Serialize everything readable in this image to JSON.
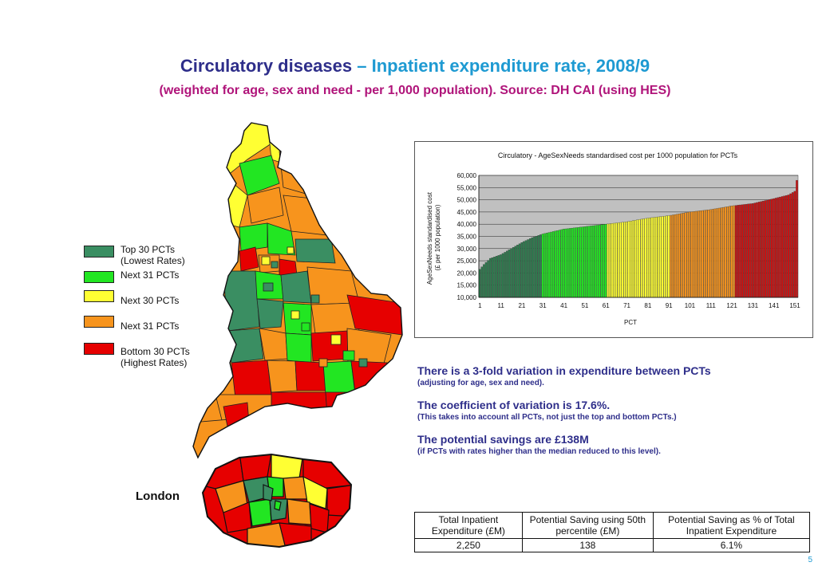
{
  "title": {
    "main": "Circulatory diseases",
    "sub": "– Inpatient expenditure rate, 2008/9",
    "subtitle": "(weighted for age, sex and need - per 1,000 population). Source: DH CAI (using HES)"
  },
  "legend": [
    {
      "label": "Top 30 PCTs\n(Lowest Rates)",
      "color": "#3a8e62"
    },
    {
      "label": "Next 31 PCTs",
      "color": "#22e622"
    },
    {
      "label": "Next 30 PCTs",
      "color": "#ffff33"
    },
    {
      "label": "Next 31 PCTs",
      "color": "#f7941d"
    },
    {
      "label": "Bottom 30 PCTs\n(Highest Rates)",
      "color": "#e60000"
    }
  ],
  "london_label": "London",
  "notes": [
    {
      "heading": "There is a 3-fold variation in expenditure between PCTs",
      "detail": "(adjusting for age, sex and need)."
    },
    {
      "heading": "The coefficient of variation is 17.6%.",
      "detail": "(This takes into account all PCTs, not just the top and bottom PCTs.)"
    },
    {
      "heading": "The potential savings are £138M",
      "detail": "(if PCTs with rates higher than the median reduced to this level)."
    }
  ],
  "table": {
    "headers": [
      "Total Inpatient Expenditure (£M)",
      "Potential Saving using 50th percentile (£M)",
      "Potential Saving as % of Total Inpatient Expenditure"
    ],
    "row": [
      "2,250",
      "138",
      "6.1%"
    ]
  },
  "page_number": "5",
  "chart_data": {
    "type": "bar",
    "title": "Circulatory - AgeSexNeeds standardised cost per 1000 population for PCTs",
    "xlabel": "PCT",
    "ylabel": "AgeSexNeeds standardised cost (£ per 1000 population)",
    "ylim": [
      10000,
      60000
    ],
    "yticks": [
      "10,000",
      "15,000",
      "20,000",
      "25,000",
      "30,000",
      "35,000",
      "40,000",
      "45,000",
      "50,000",
      "55,000",
      "60,000"
    ],
    "xticks": [
      "1",
      "11",
      "21",
      "31",
      "41",
      "51",
      "61",
      "71",
      "81",
      "91",
      "101",
      "111",
      "121",
      "131",
      "141",
      "151"
    ],
    "n": 152,
    "value_points": [
      [
        1,
        21500
      ],
      [
        3,
        23500
      ],
      [
        6,
        26000
      ],
      [
        11,
        27500
      ],
      [
        16,
        30000
      ],
      [
        21,
        32500
      ],
      [
        26,
        34500
      ],
      [
        31,
        36000
      ],
      [
        41,
        38000
      ],
      [
        51,
        39000
      ],
      [
        61,
        40000
      ],
      [
        71,
        41000
      ],
      [
        81,
        42500
      ],
      [
        91,
        43500
      ],
      [
        101,
        45000
      ],
      [
        111,
        46000
      ],
      [
        121,
        47500
      ],
      [
        131,
        48500
      ],
      [
        141,
        50500
      ],
      [
        148,
        52000
      ],
      [
        151,
        53500
      ],
      [
        152,
        58000
      ]
    ],
    "band_colors": [
      "#2e7d4f",
      "#22e622",
      "#ffff33",
      "#f7941d",
      "#cc1111"
    ],
    "grid": true
  }
}
